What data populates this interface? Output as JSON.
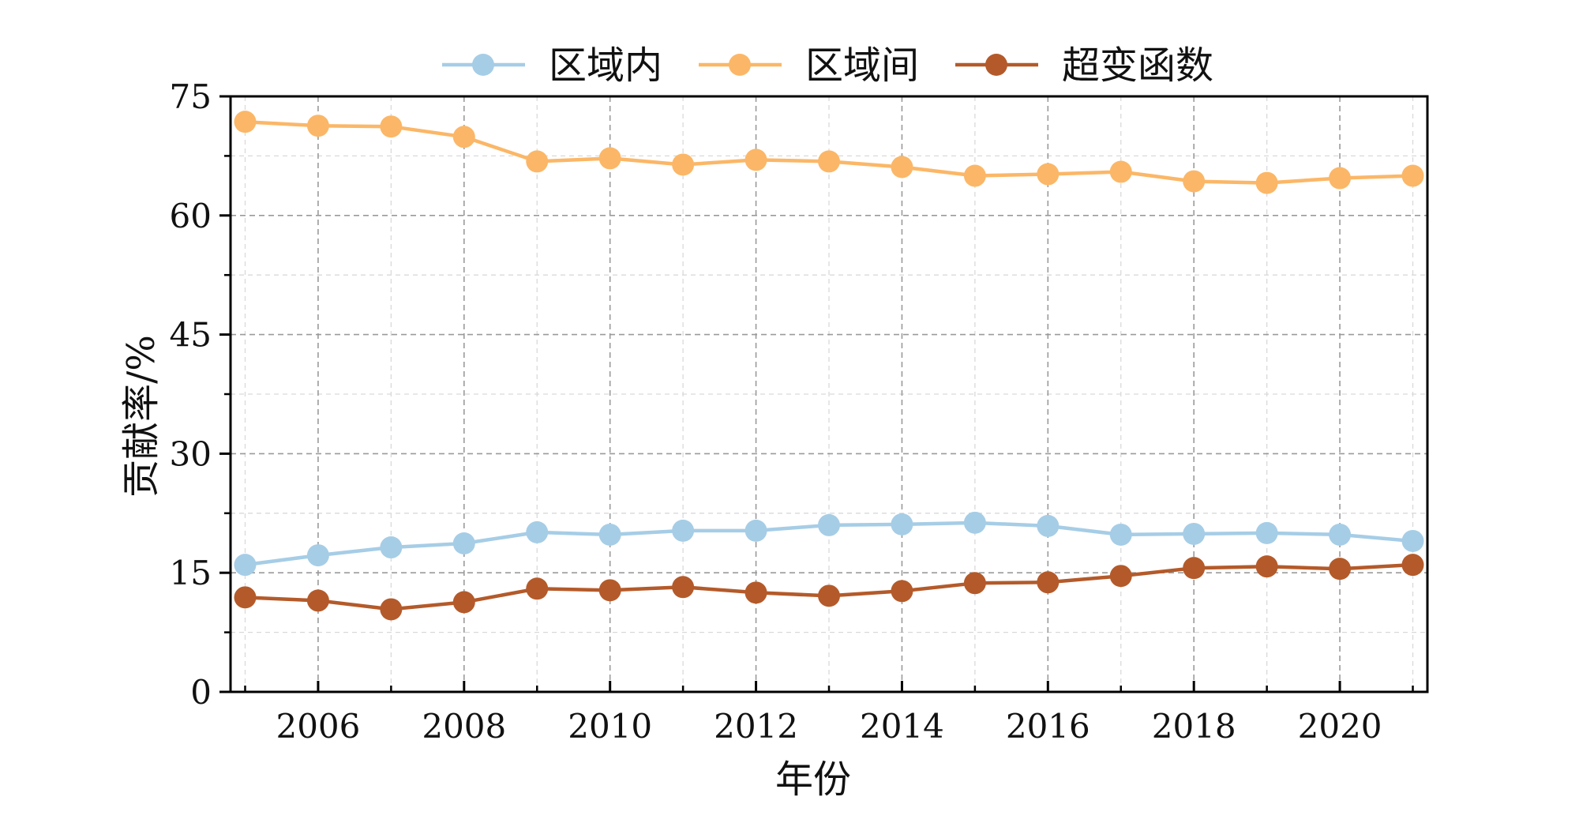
{
  "chart_data": {
    "type": "line",
    "title": "",
    "xlabel": "年份",
    "ylabel": "贡献率/%",
    "x": [
      2005,
      2006,
      2007,
      2008,
      2009,
      2010,
      2011,
      2012,
      2013,
      2014,
      2015,
      2016,
      2017,
      2018,
      2019,
      2020,
      2021
    ],
    "xlim": [
      2004.8,
      2021.2
    ],
    "ylim": [
      0,
      75
    ],
    "xticks": [
      "2006",
      "2008",
      "2010",
      "2012",
      "2014",
      "2016",
      "2018",
      "2020"
    ],
    "yticks": [
      "0",
      "15",
      "30",
      "45",
      "60",
      "75"
    ],
    "grid": true,
    "legend_position": "top-center",
    "series": [
      {
        "name": "区域内",
        "color": "#a6cde6",
        "values": [
          16.0,
          17.2,
          18.2,
          18.7,
          20.1,
          19.8,
          20.3,
          20.3,
          21.0,
          21.1,
          21.3,
          20.9,
          19.8,
          19.9,
          20.0,
          19.8,
          19.0
        ]
      },
      {
        "name": "区域间",
        "color": "#fbb767",
        "values": [
          71.8,
          71.3,
          71.2,
          69.9,
          66.8,
          67.2,
          66.4,
          67.0,
          66.8,
          66.1,
          65.0,
          65.2,
          65.5,
          64.3,
          64.1,
          64.7,
          65.0
        ]
      },
      {
        "name": "超变函数",
        "color": "#b45a2a",
        "values": [
          11.9,
          11.5,
          10.4,
          11.3,
          13.0,
          12.8,
          13.2,
          12.5,
          12.1,
          12.7,
          13.7,
          13.8,
          14.6,
          15.6,
          15.8,
          15.5,
          16.0
        ]
      }
    ]
  }
}
